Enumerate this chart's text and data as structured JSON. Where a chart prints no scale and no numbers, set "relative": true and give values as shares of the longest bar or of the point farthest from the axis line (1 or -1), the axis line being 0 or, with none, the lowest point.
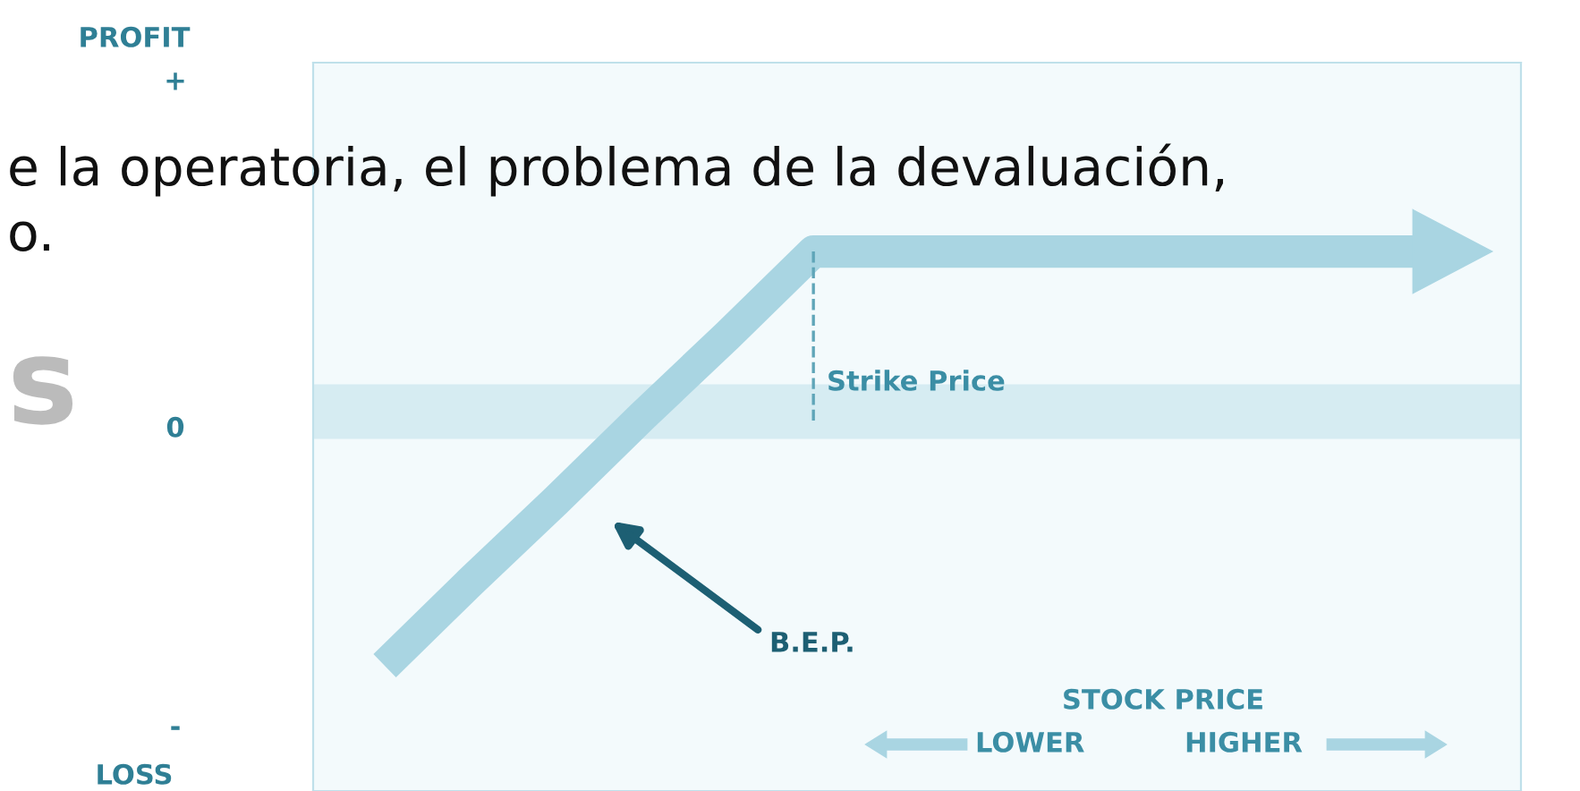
{
  "chart_data": {
    "type": "line",
    "relative": true,
    "categories": [
      null,
      null,
      null,
      null,
      null,
      null,
      null,
      null,
      null,
      null,
      null,
      null,
      null
    ],
    "series": [
      {
        "color": "#a9d5e2",
        "values": [
          -1,
          -0.67,
          -0.35,
          -0.02,
          0.3,
          0.63,
          0.63,
          0.63,
          0.63,
          0.63,
          0.63,
          0.63,
          0.63
        ]
      }
    ],
    "ref_lines": [
      {
        "axis": "y",
        "value": 0,
        "color": "#d6ecf2"
      }
    ],
    "annotations": [
      "PROFIT",
      "+",
      "0",
      "-",
      "LOSS",
      "Strike Price",
      "B.E.P.",
      "STOCK PRICE",
      "LOWER",
      "HIGHER",
      "e la operatoria, el problema de la devaluación,",
      "o.",
      "s"
    ],
    "line_style": "solid",
    "marker": "none",
    "legend": false
  }
}
